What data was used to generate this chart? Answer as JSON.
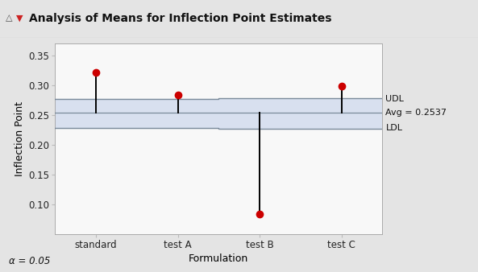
{
  "title": "Analysis of Means for Inflection Point Estimates",
  "xlabel": "Formulation",
  "ylabel": "Inflection Point",
  "categories": [
    "standard",
    "test A",
    "test B",
    "test C"
  ],
  "x_positions": [
    1,
    2,
    3,
    4
  ],
  "means": [
    0.321,
    0.284,
    0.083,
    0.298
  ],
  "avg": 0.2537,
  "udl": 0.277,
  "ldl": 0.228,
  "udl_label": "UDL",
  "avg_label": "Avg = 0.2537",
  "ldl_label": "LDL",
  "ylim": [
    0.05,
    0.37
  ],
  "xlim": [
    0.5,
    4.5
  ],
  "alpha_text": "α = 0.05",
  "point_color": "#cc0000",
  "line_color": "#000000",
  "band_color": "#d8e0ef",
  "udl_color": "#7a8a9a",
  "avg_color": "#7a8a9a",
  "ldl_color": "#7a8a9a",
  "background_outer": "#e4e4e4",
  "background_inner": "#f8f8f8",
  "title_bg": "#d4d4d4",
  "title_border": "#aaaaaa",
  "yticks": [
    0.1,
    0.15,
    0.2,
    0.25,
    0.3,
    0.35
  ],
  "segment_udl": [
    0.277,
    0.277,
    0.278,
    0.278
  ],
  "segment_ldl": [
    0.228,
    0.228,
    0.227,
    0.227
  ],
  "boundaries": [
    0.5,
    1.5,
    2.5,
    3.5,
    4.5
  ]
}
